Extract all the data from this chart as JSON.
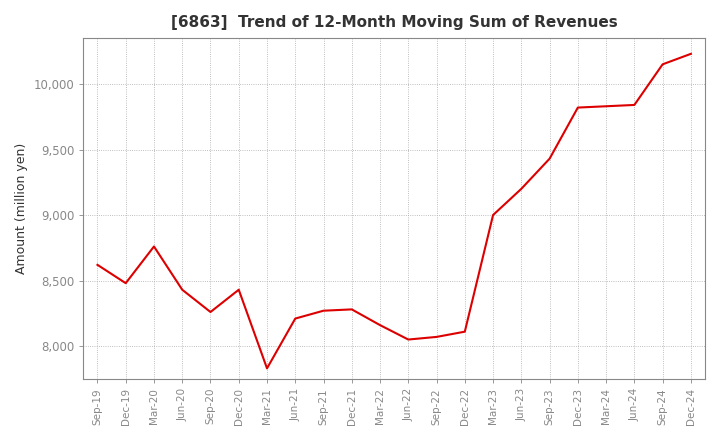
{
  "title": "[6863]  Trend of 12-Month Moving Sum of Revenues",
  "ylabel": "Amount (million yen)",
  "ylim": [
    7750,
    10350
  ],
  "yticks": [
    8000,
    8500,
    9000,
    9500,
    10000
  ],
  "line_color": "#dd0000",
  "bg_color": "#ffffff",
  "grid_color": "#aaaaaa",
  "x_labels": [
    "Sep-19",
    "Dec-19",
    "Mar-20",
    "Jun-20",
    "Sep-20",
    "Dec-20",
    "Mar-21",
    "Jun-21",
    "Sep-21",
    "Dec-21",
    "Mar-22",
    "Jun-22",
    "Sep-22",
    "Dec-22",
    "Mar-23",
    "Jun-23",
    "Sep-23",
    "Dec-23",
    "Mar-24",
    "Jun-24",
    "Sep-24",
    "Dec-24"
  ],
  "values": [
    8620,
    8480,
    8760,
    8430,
    8260,
    8430,
    7830,
    8210,
    8270,
    8280,
    8160,
    8050,
    8070,
    8110,
    9000,
    9200,
    9430,
    9820,
    9830,
    9840,
    10150,
    10230
  ]
}
